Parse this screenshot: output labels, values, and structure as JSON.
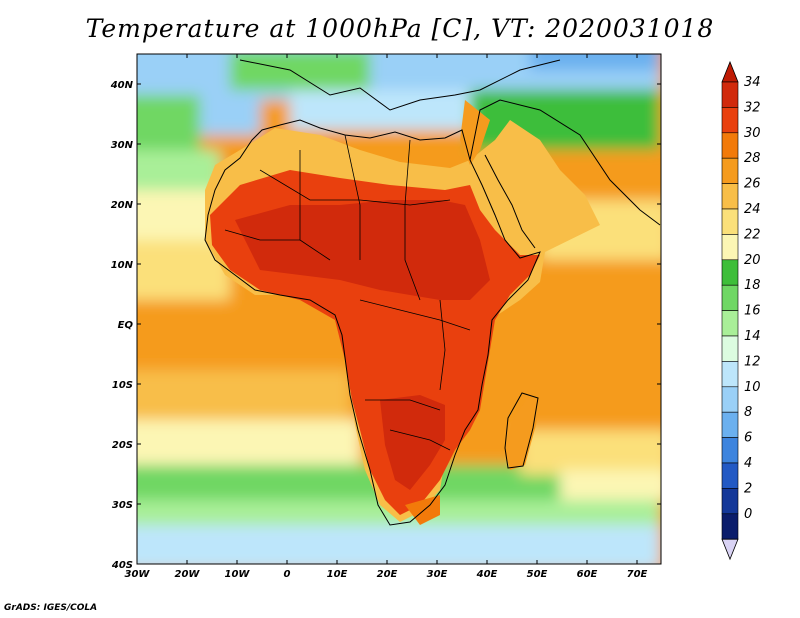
{
  "title": "Temperature at 1000hPa [C], VT: 2020031018",
  "credit": "GrADS: IGES/COLA",
  "map": {
    "lon_labels": [
      "30W",
      "20W",
      "10W",
      "0",
      "10E",
      "20E",
      "30E",
      "40E",
      "50E",
      "60E",
      "70E"
    ],
    "lat_labels": [
      "40N",
      "30N",
      "20N",
      "10N",
      "EQ",
      "10S",
      "20S",
      "30S",
      "40S"
    ]
  },
  "colorbar": {
    "labels": [
      "34",
      "32",
      "30",
      "28",
      "26",
      "24",
      "22",
      "20",
      "18",
      "16",
      "14",
      "12",
      "10",
      "8",
      "6",
      "4",
      "2",
      "0"
    ],
    "colors": [
      "#d12a0c",
      "#e9400e",
      "#f27a0a",
      "#f59b1e",
      "#f8be48",
      "#fbe07a",
      "#fcf6b4",
      "#3ebe3a",
      "#6fd764",
      "#a9ef98",
      "#dcfce0",
      "#bde6fb",
      "#9ad0f7",
      "#6bb0ef",
      "#3d84de",
      "#2259c4",
      "#143899",
      "#0b1d6b"
    ],
    "top_color": "#bf1b04",
    "bottom_color": "#d9d3f4"
  }
}
